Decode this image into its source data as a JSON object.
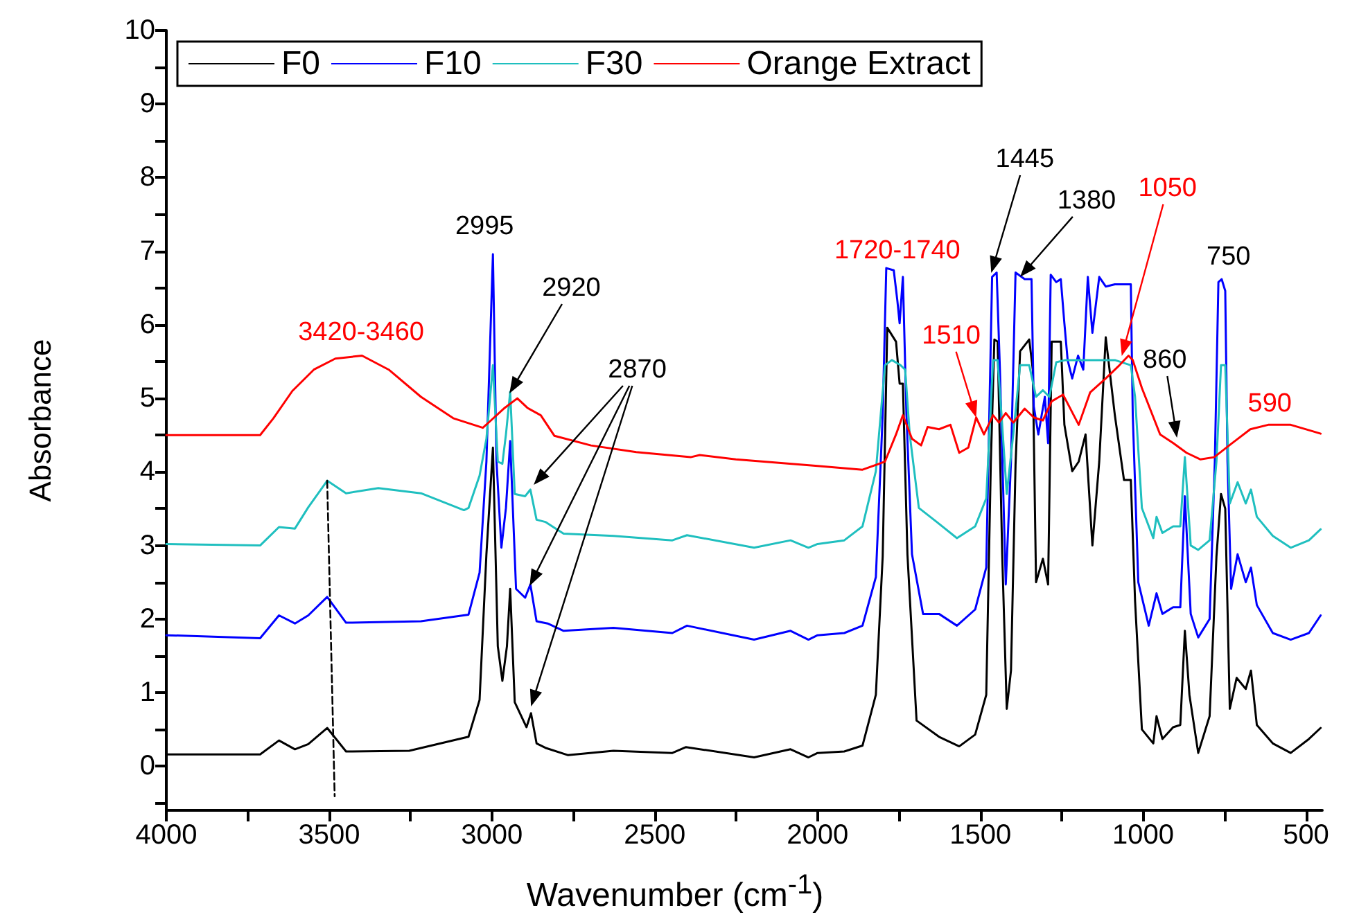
{
  "chart_data": {
    "type": "line",
    "xlabel": "Wavenumber (cm$^{-1}$)",
    "ylabel": "Absorbance",
    "xlim": [
      4000,
      450
    ],
    "xticks": [
      4000,
      {
        "value": 3750,
        "label": null
      },
      3500,
      {
        "value": 3250,
        "label": null
      },
      3000,
      {
        "value": 2750,
        "label": null
      },
      2500,
      {
        "value": 2250,
        "label": null
      },
      2000,
      {
        "value": 1750,
        "label": null
      },
      1500,
      {
        "value": 1250,
        "label": null
      },
      1000,
      {
        "value": 750,
        "label": null
      },
      500
    ],
    "ylim": [
      -0.6,
      10
    ],
    "yticks": [
      {
        "value": -0.5,
        "label": null
      },
      0,
      {
        "value": 0.5,
        "label": null
      },
      1,
      {
        "value": 1.5,
        "label": null
      },
      2,
      {
        "value": 2.5,
        "label": null
      },
      3,
      {
        "value": 3.5,
        "label": null
      },
      4,
      {
        "value": 4.5,
        "label": null
      },
      5,
      {
        "value": 5.5,
        "label": null
      },
      6,
      {
        "value": 6.5,
        "label": null
      },
      7,
      {
        "value": 7.5,
        "label": null
      },
      8,
      {
        "value": 8.5,
        "label": null
      },
      9,
      {
        "value": 9.5,
        "label": null
      },
      10
    ],
    "grid": false,
    "legend": "top left",
    "marker": "none",
    "line_style": "solid",
    "series": [
      {
        "name": "F0",
        "color": "#000000",
        "x": [
          4000,
          3712,
          3654,
          3605,
          3564,
          3506,
          3448,
          3254,
          3072,
          3038,
          3017,
          2997,
          2982,
          2968,
          2954,
          2944,
          2930,
          2894,
          2880,
          2863,
          2836,
          2766,
          2627,
          2446,
          2404,
          2195,
          2083,
          2028,
          2000,
          1918,
          1862,
          1821,
          1800,
          1786,
          1759,
          1748,
          1738,
          1724,
          1696,
          1627,
          1565,
          1516,
          1482,
          1468,
          1457,
          1447,
          1433,
          1419,
          1406,
          1392,
          1378,
          1350,
          1339,
          1329,
          1308,
          1292,
          1281,
          1253,
          1242,
          1218,
          1198,
          1177,
          1156,
          1135,
          1115,
          1087,
          1059,
          1038,
          1025,
          1004,
          969,
          959,
          941,
          908,
          886,
          872,
          858,
          831,
          796,
          775,
          761,
          748,
          734,
          713,
          685,
          669,
          651,
          602,
          547,
          491,
          455
        ],
        "values": [
          0.16,
          0.16,
          0.35,
          0.23,
          0.3,
          0.52,
          0.2,
          0.21,
          0.4,
          0.9,
          2.88,
          4.33,
          1.63,
          1.16,
          1.63,
          2.41,
          0.87,
          0.53,
          0.72,
          0.31,
          0.25,
          0.15,
          0.21,
          0.18,
          0.26,
          0.12,
          0.23,
          0.12,
          0.18,
          0.2,
          0.28,
          0.97,
          2.85,
          5.96,
          5.77,
          5.2,
          5.2,
          2.88,
          0.62,
          0.4,
          0.27,
          0.43,
          0.97,
          4.1,
          5.8,
          5.77,
          2.88,
          0.78,
          1.3,
          4.1,
          5.64,
          5.8,
          5.39,
          2.5,
          2.82,
          2.47,
          5.77,
          5.77,
          4.64,
          4.01,
          4.14,
          4.51,
          3.0,
          4.14,
          5.83,
          4.77,
          3.89,
          3.89,
          2.25,
          0.5,
          0.31,
          0.68,
          0.37,
          0.53,
          0.56,
          1.84,
          0.97,
          0.18,
          0.68,
          2.85,
          3.7,
          3.5,
          0.78,
          1.2,
          1.05,
          1.3,
          0.56,
          0.31,
          0.18,
          0.37,
          0.52
        ]
      },
      {
        "name": "F10",
        "color": "#0000ff",
        "x": [
          4000,
          3712,
          3654,
          3605,
          3564,
          3506,
          3448,
          3218,
          3072,
          3038,
          3017,
          2997,
          2986,
          2971,
          2957,
          2944,
          2926,
          2898,
          2882,
          2863,
          2829,
          2780,
          2627,
          2446,
          2401,
          2195,
          2083,
          2028,
          2000,
          1918,
          1862,
          1821,
          1800,
          1789,
          1766,
          1755,
          1748,
          1738,
          1727,
          1710,
          1676,
          1627,
          1572,
          1516,
          1482,
          1464,
          1450,
          1440,
          1422,
          1406,
          1392,
          1364,
          1343,
          1336,
          1322,
          1302,
          1292,
          1284,
          1267,
          1253,
          1242,
          1232,
          1218,
          1200,
          1184,
          1170,
          1156,
          1135,
          1115,
          1087,
          1038,
          1032,
          1015,
          983,
          959,
          941,
          908,
          886,
          872,
          854,
          831,
          796,
          780,
          769,
          759,
          748,
          741,
          730,
          710,
          685,
          669,
          651,
          602,
          547,
          491,
          455
        ],
        "values": [
          1.78,
          1.74,
          2.05,
          1.94,
          2.05,
          2.3,
          1.95,
          1.97,
          2.06,
          2.63,
          4.14,
          6.96,
          4.14,
          2.97,
          3.51,
          4.42,
          2.41,
          2.29,
          2.47,
          1.97,
          1.94,
          1.84,
          1.88,
          1.81,
          1.91,
          1.72,
          1.84,
          1.72,
          1.78,
          1.81,
          1.91,
          2.57,
          4.77,
          6.77,
          6.74,
          6.33,
          6.02,
          6.65,
          4.77,
          2.88,
          2.07,
          2.07,
          1.91,
          2.13,
          2.7,
          6.65,
          6.71,
          5.39,
          2.47,
          4.14,
          6.71,
          6.62,
          6.62,
          4.89,
          4.51,
          5.02,
          4.39,
          6.68,
          6.58,
          6.62,
          6.02,
          5.52,
          5.27,
          5.58,
          5.39,
          6.65,
          5.89,
          6.65,
          6.52,
          6.55,
          6.55,
          4.77,
          2.5,
          1.91,
          2.35,
          2.07,
          2.16,
          2.16,
          3.67,
          2.07,
          1.75,
          2.0,
          4.14,
          6.58,
          6.62,
          6.46,
          4.14,
          2.41,
          2.88,
          2.5,
          2.7,
          2.19,
          1.81,
          1.72,
          1.81,
          2.05
        ]
      },
      {
        "name": "F30",
        "color": "#1fbfbf",
        "x": [
          4000,
          3712,
          3654,
          3605,
          3564,
          3506,
          3448,
          3349,
          3218,
          3086,
          3072,
          3038,
          3017,
          2997,
          2982,
          2968,
          2957,
          2944,
          2930,
          2898,
          2882,
          2863,
          2836,
          2780,
          2627,
          2446,
          2401,
          2195,
          2083,
          2028,
          2000,
          1918,
          1862,
          1821,
          1793,
          1772,
          1745,
          1731,
          1717,
          1689,
          1634,
          1572,
          1516,
          1482,
          1461,
          1447,
          1433,
          1419,
          1399,
          1378,
          1350,
          1329,
          1308,
          1288,
          1267,
          1239,
          1198,
          1142,
          1087,
          1038,
          1025,
          1004,
          969,
          959,
          941,
          908,
          886,
          872,
          854,
          831,
          796,
          775,
          761,
          748,
          734,
          710,
          685,
          669,
          651,
          602,
          547,
          491,
          455
        ],
        "values": [
          3.02,
          3.0,
          3.25,
          3.23,
          3.52,
          3.88,
          3.71,
          3.78,
          3.71,
          3.48,
          3.51,
          3.95,
          4.45,
          5.45,
          4.14,
          4.11,
          4.51,
          5.09,
          3.7,
          3.67,
          3.76,
          3.35,
          3.32,
          3.16,
          3.13,
          3.07,
          3.14,
          2.97,
          3.07,
          2.97,
          3.02,
          3.07,
          3.26,
          4.01,
          5.45,
          5.52,
          5.45,
          5.39,
          4.51,
          3.51,
          3.32,
          3.1,
          3.26,
          3.64,
          5.52,
          5.52,
          4.64,
          3.7,
          4.51,
          5.45,
          5.45,
          5.02,
          5.11,
          5.02,
          5.49,
          5.52,
          5.52,
          5.52,
          5.52,
          5.45,
          5.02,
          3.51,
          3.1,
          3.39,
          3.17,
          3.26,
          3.26,
          4.2,
          3.0,
          2.94,
          3.07,
          4.14,
          5.45,
          5.45,
          3.57,
          3.86,
          3.57,
          3.76,
          3.39,
          3.13,
          2.97,
          3.07,
          3.22
        ]
      },
      {
        "name": "Orange Extract",
        "color": "#ff0000",
        "x": [
          4000,
          3712,
          3671,
          3613,
          3547,
          3481,
          3399,
          3317,
          3218,
          3119,
          3028,
          3003,
          2961,
          2922,
          2891,
          2850,
          2808,
          2696,
          2557,
          2390,
          2362,
          2251,
          2000,
          1862,
          1793,
          1759,
          1738,
          1710,
          1682,
          1662,
          1627,
          1592,
          1565,
          1537,
          1513,
          1489,
          1461,
          1443,
          1422,
          1399,
          1364,
          1336,
          1308,
          1281,
          1246,
          1198,
          1163,
          1115,
          1073,
          1045,
          1032,
          1004,
          948,
          907,
          867,
          824,
          782,
          727,
          671,
          616,
          547,
          478,
          455
        ],
        "values": [
          4.5,
          4.5,
          4.73,
          5.1,
          5.39,
          5.54,
          5.58,
          5.39,
          5.02,
          4.73,
          4.6,
          4.7,
          4.87,
          5.0,
          4.87,
          4.77,
          4.49,
          4.36,
          4.27,
          4.2,
          4.23,
          4.17,
          4.08,
          4.03,
          4.14,
          4.51,
          4.77,
          4.45,
          4.36,
          4.61,
          4.58,
          4.64,
          4.26,
          4.33,
          4.74,
          4.51,
          4.77,
          4.67,
          4.8,
          4.67,
          4.86,
          4.74,
          4.7,
          4.96,
          5.05,
          4.64,
          5.08,
          5.27,
          5.45,
          5.58,
          5.52,
          5.14,
          4.51,
          4.39,
          4.26,
          4.17,
          4.2,
          4.39,
          4.58,
          4.64,
          4.64,
          4.55,
          4.52
        ]
      },
      {
        "color": "#000000",
        "line_style": "dashed",
        "x": [
          3506,
          3483
        ],
        "values": [
          3.88,
          -0.41
        ]
      }
    ],
    "annotations": [
      {
        "text": "3420-3460",
        "x": 3440,
        "y": 5.58
      },
      {
        "text": "2995",
        "x": 2997,
        "y": 6.96
      },
      "2920",
      "2870",
      {
        "text": "1720-1740",
        "x": 1738,
        "y": 6.65
      },
      {
        "text": "1510",
        "x": 1513,
        "y": 4.74
      },
      "1445",
      {
        "text": "1380",
        "x": 1378,
        "y": 6.65
      },
      "1050",
      {
        "text": "750",
        "x": 759,
        "y": 6.62
      },
      "860",
      {
        "text": "590",
        "x": 590,
        "y": 4.64
      }
    ]
  }
}
